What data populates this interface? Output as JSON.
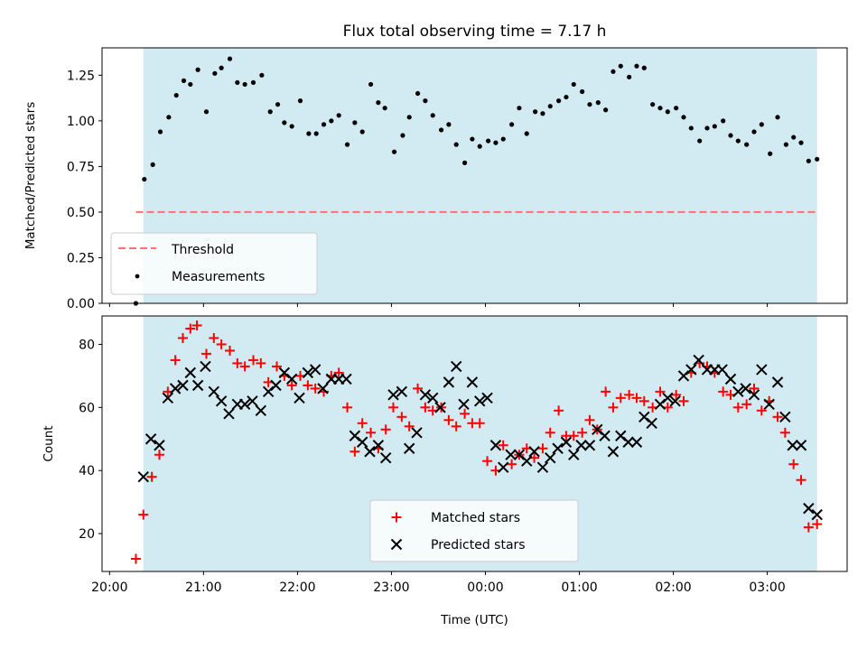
{
  "chart_data": [
    {
      "type": "scatter",
      "title": "Flux total observing time = 7.17 h",
      "xlabel": "",
      "ylabel": "Matched/Predicted stars",
      "ylim": [
        0,
        1.4
      ],
      "yticks": [
        "0.00",
        "0.25",
        "0.50",
        "0.75",
        "1.00",
        "1.25"
      ],
      "x_unit": "hours since 20:00 UTC",
      "xlim_hours": [
        -0.08,
        7.85
      ],
      "shaded_span_hours": [
        0.36,
        7.53
      ],
      "legend_position": "lower-left",
      "series": [
        {
          "name": "Threshold",
          "style": "dashed-line",
          "color": "#ff7070",
          "x_hours": [
            0.28,
            7.53
          ],
          "y": [
            0.5,
            0.5
          ]
        },
        {
          "name": "Measurements",
          "style": "dots",
          "color": "#000000",
          "x_hours": [
            0.28,
            0.37,
            0.46,
            0.54,
            0.63,
            0.71,
            0.79,
            0.86,
            0.94,
            1.03,
            1.12,
            1.19,
            1.28,
            1.36,
            1.44,
            1.53,
            1.62,
            1.71,
            1.79,
            1.86,
            1.94,
            2.03,
            2.12,
            2.2,
            2.28,
            2.36,
            2.44,
            2.53,
            2.61,
            2.69,
            2.78,
            2.86,
            2.93,
            3.03,
            3.12,
            3.19,
            3.28,
            3.36,
            3.44,
            3.53,
            3.61,
            3.69,
            3.78,
            3.86,
            3.94,
            4.03,
            4.11,
            4.19,
            4.28,
            4.36,
            4.44,
            4.53,
            4.61,
            4.69,
            4.78,
            4.86,
            4.94,
            5.03,
            5.11,
            5.2,
            5.28,
            5.36,
            5.44,
            5.53,
            5.61,
            5.69,
            5.78,
            5.86,
            5.94,
            6.03,
            6.11,
            6.19,
            6.28,
            6.36,
            6.44,
            6.53,
            6.61,
            6.69,
            6.78,
            6.86,
            6.94,
            7.03,
            7.11,
            7.2,
            7.28,
            7.36,
            7.44,
            7.53
          ],
          "y": [
            0.0,
            0.68,
            0.76,
            0.94,
            1.02,
            1.14,
            1.22,
            1.2,
            1.28,
            1.05,
            1.26,
            1.29,
            1.34,
            1.21,
            1.2,
            1.21,
            1.25,
            1.05,
            1.09,
            0.99,
            0.97,
            1.11,
            0.93,
            0.93,
            0.98,
            1.0,
            1.03,
            0.87,
            0.99,
            0.94,
            1.2,
            1.1,
            1.07,
            0.83,
            0.92,
            1.02,
            1.15,
            1.11,
            1.03,
            0.95,
            0.98,
            0.87,
            0.77,
            0.9,
            0.86,
            0.89,
            0.88,
            0.9,
            0.98,
            1.07,
            0.93,
            1.05,
            1.04,
            1.08,
            1.11,
            1.13,
            1.2,
            1.16,
            1.09,
            1.1,
            1.06,
            1.27,
            1.3,
            1.24,
            1.3,
            1.29,
            1.09,
            1.07,
            1.05,
            1.07,
            1.02,
            0.96,
            0.89,
            0.96,
            0.97,
            1.0,
            0.92,
            0.89,
            0.87,
            0.94,
            0.98,
            0.82,
            1.02,
            0.87,
            0.91,
            0.88,
            0.78,
            0.79
          ]
        }
      ]
    },
    {
      "type": "scatter",
      "title": "",
      "xlabel": "Time (UTC)",
      "ylabel": "Count",
      "ylim": [
        8,
        89
      ],
      "yticks": [
        "20",
        "40",
        "60",
        "80"
      ],
      "x_unit": "hours since 20:00 UTC",
      "xlim_hours": [
        -0.08,
        7.85
      ],
      "xtick_labels": [
        "20:00",
        "21:00",
        "22:00",
        "23:00",
        "00:00",
        "01:00",
        "02:00",
        "03:00"
      ],
      "shaded_span_hours": [
        0.36,
        7.53
      ],
      "legend_position": "lower-center",
      "series": [
        {
          "name": "Matched stars",
          "marker": "plus",
          "color": "#ff0000",
          "x_hours": [
            0.28,
            0.36,
            0.45,
            0.53,
            0.62,
            0.7,
            0.78,
            0.86,
            0.93,
            1.03,
            1.11,
            1.19,
            1.28,
            1.36,
            1.44,
            1.53,
            1.61,
            1.69,
            1.78,
            1.86,
            1.94,
            2.03,
            2.11,
            2.19,
            2.28,
            2.36,
            2.44,
            2.53,
            2.61,
            2.69,
            2.78,
            2.86,
            2.94,
            3.02,
            3.11,
            3.19,
            3.28,
            3.36,
            3.44,
            3.53,
            3.61,
            3.69,
            3.78,
            3.86,
            3.94,
            4.02,
            4.11,
            4.19,
            4.28,
            4.36,
            4.44,
            4.52,
            4.61,
            4.69,
            4.78,
            4.86,
            4.94,
            5.03,
            5.11,
            5.19,
            5.28,
            5.36,
            5.44,
            5.53,
            5.61,
            5.69,
            5.78,
            5.86,
            5.94,
            6.03,
            6.11,
            6.19,
            6.28,
            6.36,
            6.44,
            6.53,
            6.61,
            6.69,
            6.78,
            6.86,
            6.94,
            7.02,
            7.11,
            7.19,
            7.28,
            7.36,
            7.44,
            7.53
          ],
          "y": [
            12,
            26,
            38,
            45,
            65,
            75,
            82,
            85,
            86,
            77,
            82,
            80,
            78,
            74,
            73,
            75,
            74,
            68,
            73,
            70,
            67,
            70,
            67,
            66,
            65,
            70,
            71,
            60,
            46,
            55,
            52,
            47,
            53,
            60,
            57,
            54,
            66,
            60,
            59,
            60,
            56,
            54,
            58,
            55,
            55,
            43,
            40,
            48,
            42,
            45,
            47,
            44,
            47,
            52,
            59,
            51,
            51,
            52,
            56,
            53,
            65,
            60,
            63,
            64,
            63,
            62,
            60,
            65,
            60,
            64,
            62,
            71,
            74,
            73,
            71,
            65,
            64,
            60,
            61,
            66,
            59,
            62,
            57,
            52,
            42,
            37,
            22,
            23
          ]
        },
        {
          "name": "Predicted stars",
          "marker": "x",
          "color": "#000000",
          "x_hours": [
            0.36,
            0.44,
            0.53,
            0.62,
            0.7,
            0.78,
            0.86,
            0.94,
            1.02,
            1.11,
            1.19,
            1.27,
            1.36,
            1.44,
            1.52,
            1.61,
            1.69,
            1.77,
            1.86,
            1.94,
            2.02,
            2.11,
            2.19,
            2.27,
            2.36,
            2.44,
            2.52,
            2.61,
            2.69,
            2.77,
            2.86,
            2.94,
            3.02,
            3.11,
            3.19,
            3.27,
            3.36,
            3.44,
            3.52,
            3.61,
            3.69,
            3.77,
            3.86,
            3.94,
            4.02,
            4.11,
            4.19,
            4.27,
            4.36,
            4.44,
            4.52,
            4.61,
            4.69,
            4.77,
            4.86,
            4.94,
            5.02,
            5.11,
            5.19,
            5.27,
            5.36,
            5.44,
            5.52,
            5.61,
            5.69,
            5.77,
            5.86,
            5.94,
            6.02,
            6.11,
            6.19,
            6.27,
            6.36,
            6.44,
            6.52,
            6.61,
            6.69,
            6.77,
            6.86,
            6.94,
            7.02,
            7.11,
            7.19,
            7.27,
            7.36,
            7.44,
            7.53
          ],
          "y": [
            38,
            50,
            48,
            63,
            66,
            67,
            71,
            67,
            73,
            65,
            62,
            58,
            61,
            61,
            62,
            59,
            65,
            67,
            71,
            69,
            63,
            71,
            72,
            66,
            69,
            69,
            69,
            51,
            49,
            46,
            48,
            44,
            64,
            65,
            47,
            52,
            64,
            63,
            60,
            68,
            73,
            61,
            68,
            62,
            63,
            48,
            41,
            45,
            45,
            43,
            46,
            41,
            44,
            47,
            49,
            45,
            48,
            48,
            53,
            51,
            46,
            51,
            49,
            49,
            57,
            55,
            61,
            63,
            62,
            70,
            72,
            75,
            72,
            72,
            72,
            69,
            65,
            66,
            64,
            72,
            61,
            68,
            57,
            48,
            48,
            28,
            26
          ]
        }
      ]
    }
  ]
}
